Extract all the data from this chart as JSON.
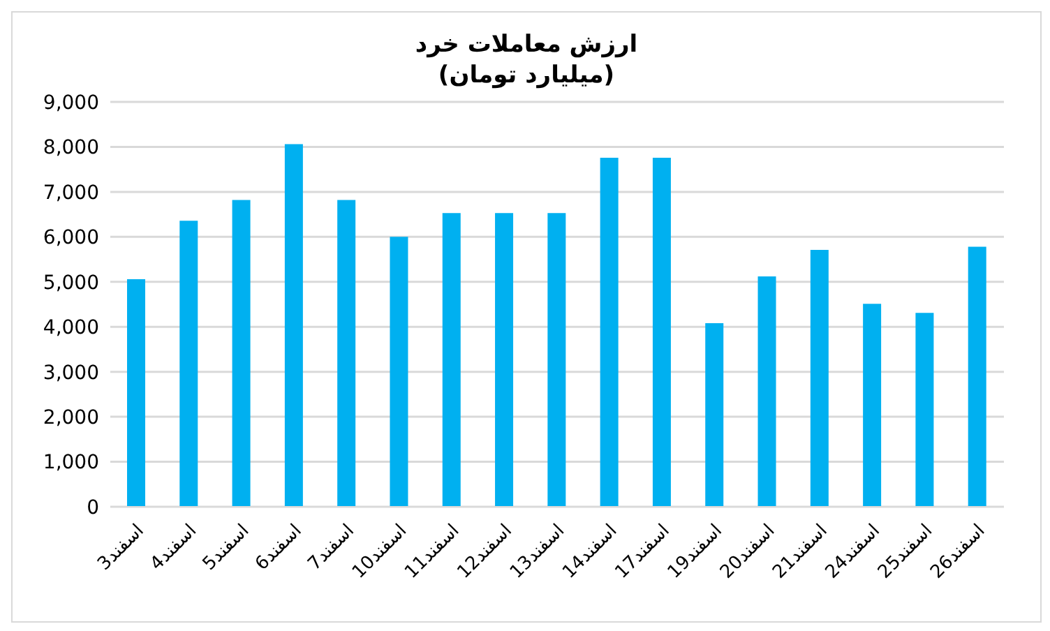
{
  "chart_data": {
    "type": "bar",
    "title": "ارزش معاملات خرد",
    "subtitle": "(میلیارد تومان)",
    "categories": [
      "3اسفند",
      "4اسفند",
      "5اسفند",
      "6اسفند",
      "7اسفند",
      "10اسفند",
      "11اسفند",
      "12اسفند",
      "13اسفند",
      "14اسفند",
      "17اسفند",
      "19اسفند",
      "20اسفند",
      "21اسفند",
      "24اسفند",
      "25اسفند",
      "26اسفند"
    ],
    "values": [
      5060,
      6360,
      6820,
      8060,
      6820,
      6000,
      6530,
      6530,
      6530,
      7760,
      7760,
      4080,
      5120,
      5710,
      4510,
      4310,
      5780
    ],
    "color": "#00b0f0",
    "ylim": [
      0,
      9000
    ],
    "yticks": [
      {
        "value": 0,
        "label": "0"
      },
      {
        "value": 1000,
        "label": "1,000"
      },
      {
        "value": 2000,
        "label": "2,000"
      },
      {
        "value": 3000,
        "label": "3,000"
      },
      {
        "value": 4000,
        "label": "4,000"
      },
      {
        "value": 5000,
        "label": "5,000"
      },
      {
        "value": 6000,
        "label": "6,000"
      },
      {
        "value": 7000,
        "label": "7,000"
      },
      {
        "value": 8000,
        "label": "8,000"
      },
      {
        "value": 9000,
        "label": "9,000"
      }
    ],
    "grid": "y"
  }
}
